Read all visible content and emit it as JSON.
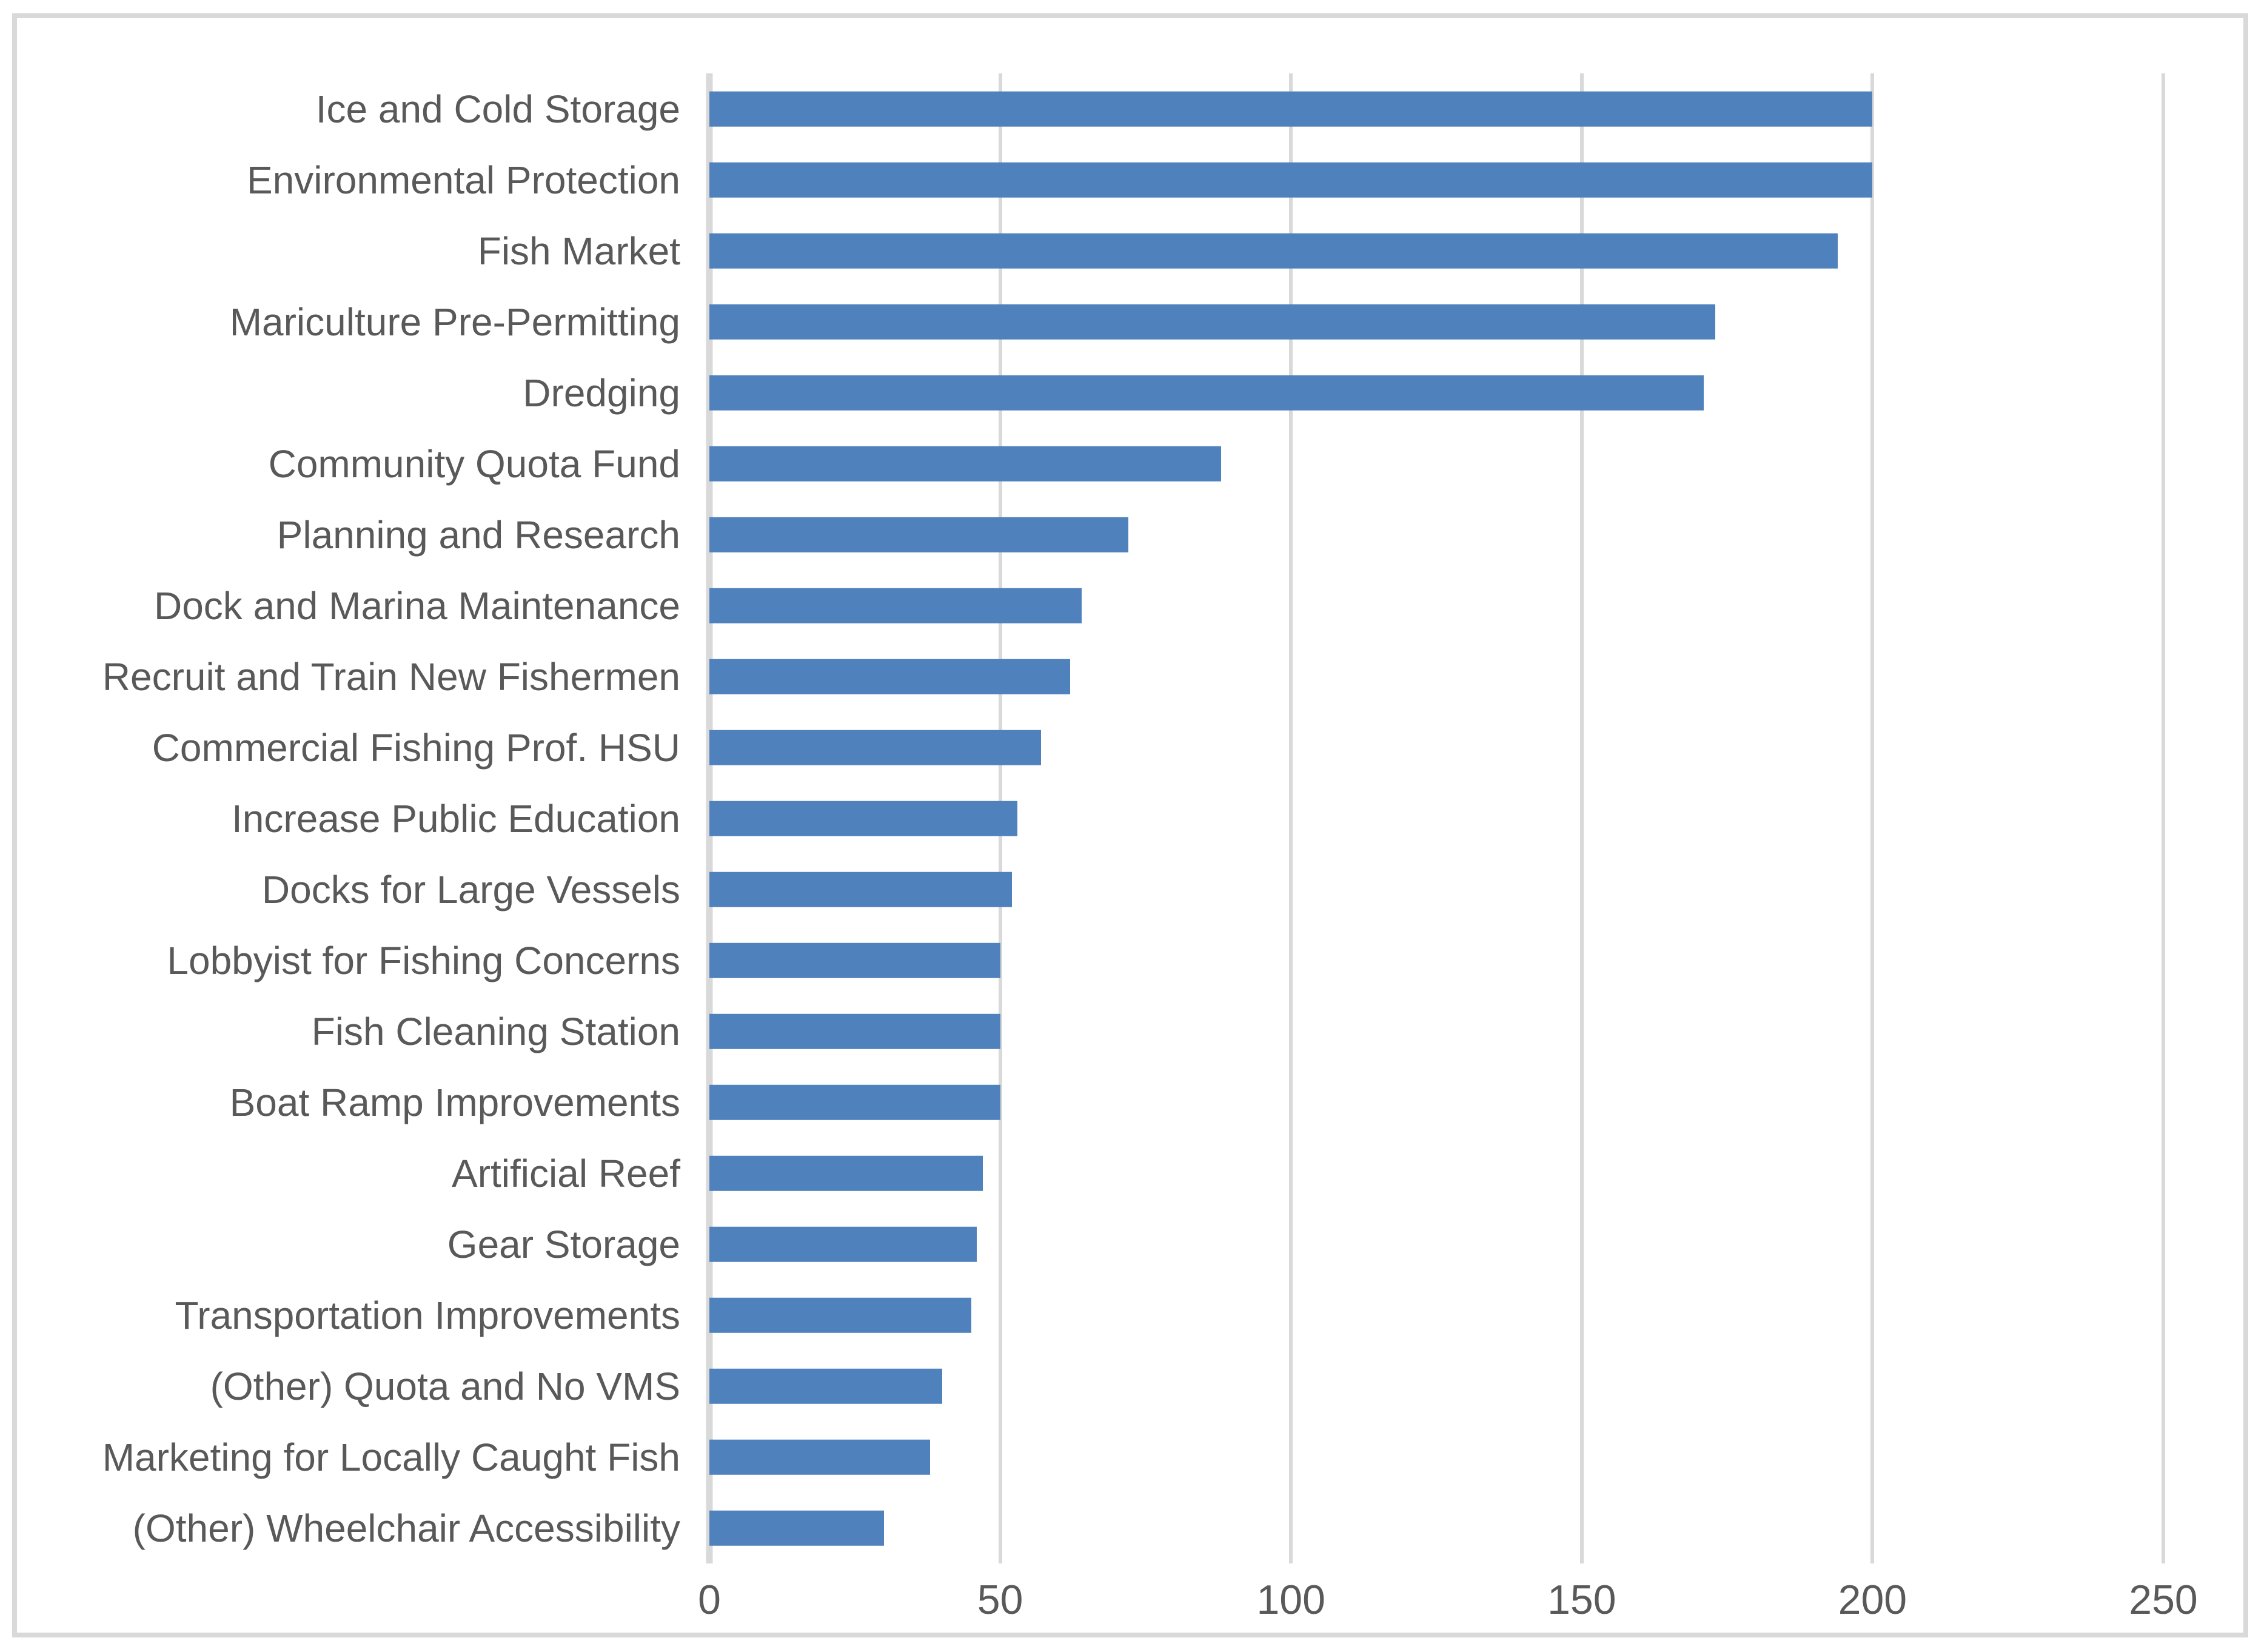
{
  "chart_data": {
    "type": "bar",
    "orientation": "horizontal",
    "title": "",
    "xlabel": "",
    "ylabel": "",
    "categories": [
      "Ice and Cold Storage",
      "Environmental Protection",
      "Fish Market",
      "Mariculture Pre-Permitting",
      "Dredging",
      "Community Quota Fund",
      "Planning and Research",
      "Dock and Marina Maintenance",
      "Recruit and Train New Fishermen",
      "Commercial Fishing Prof. HSU",
      "Increase Public Education",
      "Docks for Large Vessels",
      "Lobbyist for Fishing Concerns",
      "Fish Cleaning Station",
      "Boat Ramp Improvements",
      "Artificial Reef",
      "Gear Storage",
      "Transportation Improvements",
      "(Other) Quota and No VMS",
      "Marketing for Locally Caught Fish",
      "(Other) Wheelchair Accessibility"
    ],
    "values": [
      200,
      200,
      194,
      173,
      171,
      88,
      72,
      64,
      62,
      57,
      53,
      52,
      50,
      50,
      50,
      47,
      46,
      45,
      40,
      38,
      30
    ],
    "xlim": [
      0,
      250
    ],
    "x_ticks": [
      0,
      50,
      100,
      150,
      200,
      250
    ],
    "grid": "vertical-gridlines-on",
    "legend": "none",
    "colors": {
      "bar": "#4F81BD",
      "gridline": "#D9D9D9",
      "axis_line": "#D9D9D9",
      "frame_border": "#D9D9D9",
      "text": "#595959",
      "background": "#FFFFFF"
    }
  }
}
